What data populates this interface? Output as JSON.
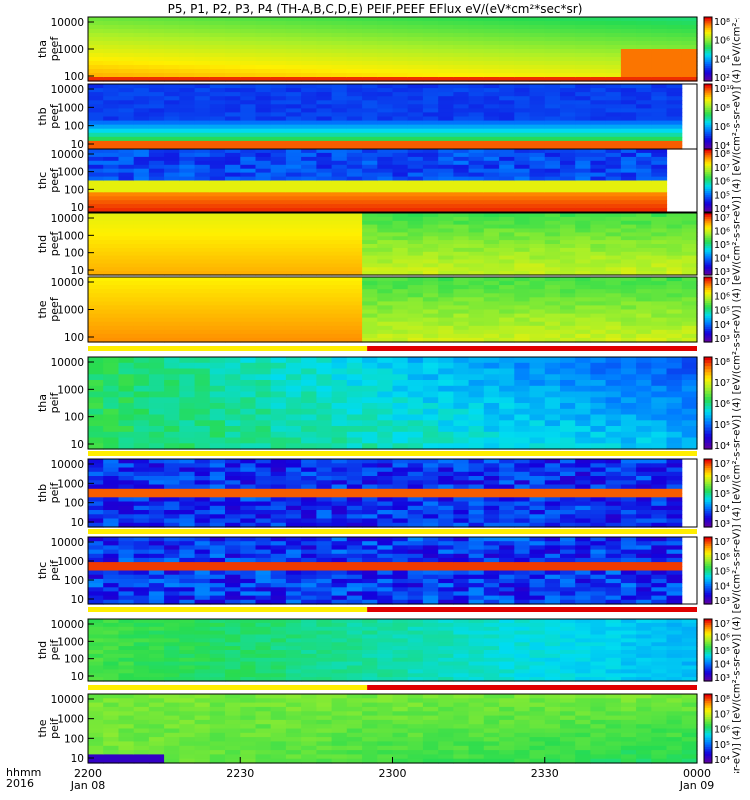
{
  "title": "P5, P1, P2, P3, P4 (TH-A,B,C,D,E) PEIF,PEEF EFlux eV/(eV*cm²*sec*sr)",
  "colorbar_label": "[eV/(cm²-s-sr-eV)] (4) [eV/(cm²-s-sr-eV)] (4) [eV/(cm²-s-sr-eV)] (4) [eV/(cm²-s-sr-eV)] (4) [eV/(cm²-s-sr-eV)] (4) [eV/(cm²-s-sr-eV)] (4) [eV/(cm²-s-sr-eV)] (4) [eV/(cm²-s-sr-eV)] (4)",
  "footer": {
    "unit_label": "hhmm",
    "year_label": "2016"
  },
  "chart_data": {
    "type": "heatmap",
    "x_ticks": [
      {
        "label": "2200",
        "sub": "Jan 08"
      },
      {
        "label": "2230",
        "sub": ""
      },
      {
        "label": "2300",
        "sub": ""
      },
      {
        "label": "2330",
        "sub": ""
      },
      {
        "label": "0000",
        "sub": "Jan 09"
      }
    ],
    "colormap": "rainbow (purple-blue-cyan-green-yellow-orange-red)",
    "panels": [
      {
        "name": "tha peef",
        "y_ticks": [
          "10000",
          "1000",
          "100"
        ],
        "colorbar_ticks": [
          "10⁸",
          "10⁶",
          "10⁴",
          "10²"
        ]
      },
      {
        "name": "thb peef",
        "y_ticks": [
          "10000",
          "1000",
          "100",
          "10"
        ],
        "colorbar_ticks": [
          "10¹⁰",
          "10⁸",
          "10⁶",
          "10⁴"
        ]
      },
      {
        "name": "thc peef",
        "y_ticks": [
          "10000",
          "1000",
          "100",
          "10"
        ],
        "colorbar_ticks": [
          "10⁸",
          "10⁷",
          "10⁶",
          "10⁵",
          "10⁴"
        ]
      },
      {
        "name": "thd peef",
        "y_ticks": [
          "10000",
          "1000",
          "100",
          "10"
        ],
        "colorbar_ticks": [
          "10⁷",
          "10⁶",
          "10⁵",
          "10⁴",
          "10³"
        ]
      },
      {
        "name": "the peef",
        "y_ticks": [
          "10000",
          "1000",
          "100"
        ],
        "colorbar_ticks": [
          "10⁷",
          "10⁶",
          "10⁵",
          "10⁴",
          "10³"
        ]
      },
      {
        "name": "tha peif",
        "y_ticks": [
          "10000",
          "1000",
          "100",
          "10"
        ],
        "colorbar_ticks": [
          "10⁸",
          "10⁷",
          "10⁶",
          "10⁵",
          "10⁴"
        ]
      },
      {
        "name": "thb peif",
        "y_ticks": [
          "10000",
          "1000",
          "100",
          "10"
        ],
        "colorbar_ticks": [
          "10⁷",
          "10⁶",
          "10⁵",
          "10⁴",
          "10³"
        ]
      },
      {
        "name": "thc peif",
        "y_ticks": [
          "10000",
          "1000",
          "100",
          "10"
        ],
        "colorbar_ticks": [
          "10⁷",
          "10⁶",
          "10⁵",
          "10⁴",
          "10³"
        ]
      },
      {
        "name": "thd peif",
        "y_ticks": [
          "10000",
          "1000",
          "100",
          "10"
        ],
        "colorbar_ticks": [
          "10⁷",
          "10⁶",
          "10⁵",
          "10⁴",
          "10³"
        ]
      },
      {
        "name": "the peif",
        "y_ticks": [
          "10000",
          "1000",
          "100",
          "10"
        ],
        "colorbar_ticks": [
          "10⁸",
          "10⁷",
          "10⁶",
          "10⁵",
          "10⁴"
        ]
      }
    ],
    "mode_bars": [
      {
        "after_panel": "the peef",
        "yellow_until": "2255",
        "red_from": "2255"
      },
      {
        "after_panel": "tha peif",
        "yellow_until": "0000",
        "red_from": ""
      },
      {
        "after_panel": "thb peif",
        "yellow_until": "0000",
        "red_from": ""
      },
      {
        "after_panel": "thc peif",
        "yellow_until": "2255",
        "red_from": "2255"
      },
      {
        "after_panel": "thd peif",
        "yellow_until": "2255",
        "red_from": "2255"
      }
    ]
  }
}
